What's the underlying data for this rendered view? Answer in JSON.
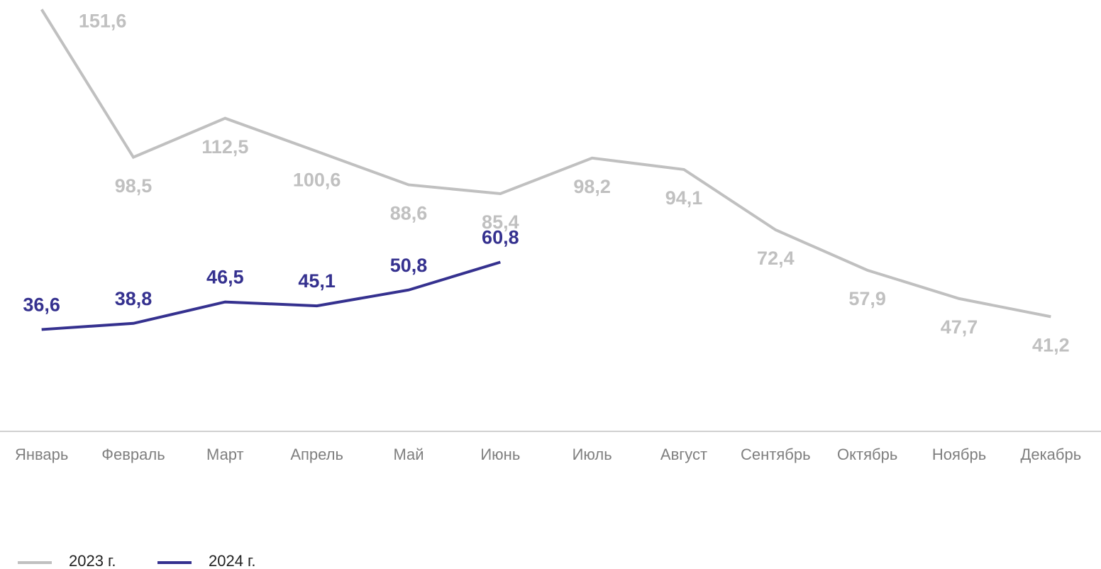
{
  "chart_data": {
    "type": "line",
    "categories": [
      "Январь",
      "Февраль",
      "Март",
      "Апрель",
      "Май",
      "Июнь",
      "Июль",
      "Август",
      "Сентябрь",
      "Октябрь",
      "Ноябрь",
      "Декабрь"
    ],
    "series": [
      {
        "name": "2023 г.",
        "color": "#c0c0c0",
        "values": [
          151.6,
          98.5,
          112.5,
          100.6,
          88.6,
          85.4,
          98.2,
          94.1,
          72.4,
          57.9,
          47.7,
          41.2
        ],
        "value_labels": [
          "151,6",
          "98,5",
          "112,5",
          "100,6",
          "88,6",
          "85,4",
          "98,2",
          "94,1",
          "72,4",
          "57,9",
          "47,7",
          "41,2"
        ]
      },
      {
        "name": "2024 г.",
        "color": "#35318f",
        "values": [
          36.6,
          38.8,
          46.5,
          45.1,
          50.8,
          60.8,
          null,
          null,
          null,
          null,
          null,
          null
        ],
        "value_labels": [
          "36,6",
          "38,8",
          "46,5",
          "45,1",
          "50,8",
          "60,8",
          null,
          null,
          null,
          null,
          null,
          null
        ]
      }
    ],
    "ylim": [
      0,
      155
    ]
  }
}
